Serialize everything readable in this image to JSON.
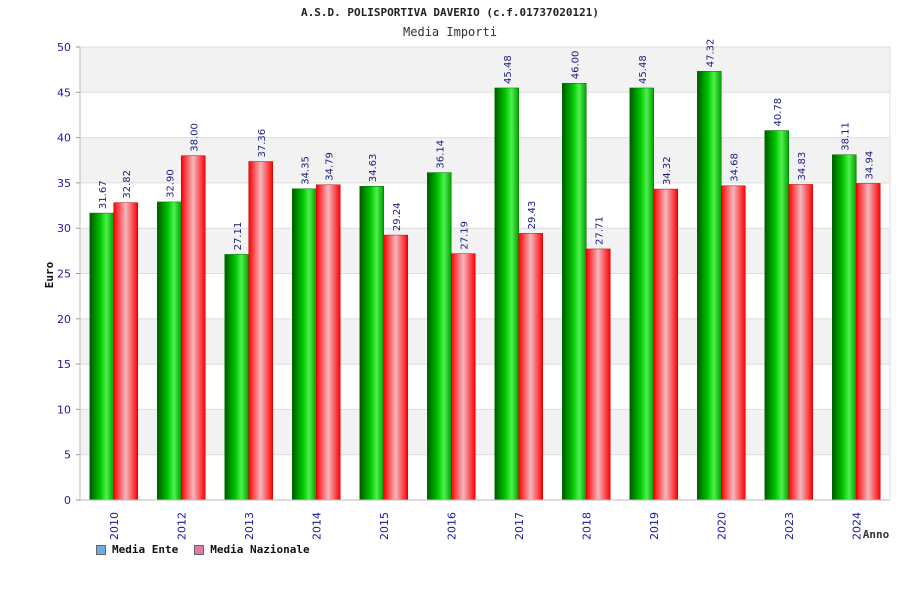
{
  "header": {
    "title": "A.S.D. POLISPORTIVA DAVERIO (c.f.01737020121)",
    "subtitle": "Media Importi"
  },
  "legend": {
    "items": [
      {
        "label": "Media Ente",
        "color": "#6fa8e8"
      },
      {
        "label": "Media Nazionale",
        "color": "#e07aa8"
      }
    ]
  },
  "chart_data": {
    "type": "bar",
    "title": "A.S.D. POLISPORTIVA DAVERIO (c.f.01737020121)",
    "subtitle": "Media Importi",
    "xlabel": "Anno",
    "ylabel": "Euro",
    "ylim": [
      0,
      50
    ],
    "yticks": [
      0,
      5,
      10,
      15,
      20,
      25,
      30,
      35,
      40,
      45,
      50
    ],
    "categories": [
      "2010",
      "2012",
      "2013",
      "2014",
      "2015",
      "2016",
      "2017",
      "2018",
      "2019",
      "2020",
      "2023",
      "2024"
    ],
    "series": [
      {
        "name": "Media Ente",
        "values": [
          31.67,
          32.9,
          27.11,
          34.35,
          34.63,
          36.14,
          45.48,
          46.0,
          45.48,
          47.32,
          40.78,
          38.11
        ],
        "labels": [
          "31.67",
          "32.90",
          "27.11",
          "34.35",
          "34.63",
          "36.14",
          "45.48",
          "46.00",
          "45.48",
          "47.32",
          "40.78",
          "38.11"
        ],
        "color": "#00b400"
      },
      {
        "name": "Media Nazionale",
        "values": [
          32.82,
          38.0,
          37.36,
          34.79,
          29.24,
          27.19,
          29.43,
          27.71,
          34.32,
          34.68,
          34.83,
          34.94
        ],
        "labels": [
          "32.82",
          "38.00",
          "37.36",
          "34.79",
          "29.24",
          "27.19",
          "29.43",
          "27.71",
          "34.32",
          "34.68",
          "34.83",
          "34.94"
        ],
        "color": "#e80000"
      }
    ],
    "grid": true,
    "legend_position": "bottom-left"
  }
}
